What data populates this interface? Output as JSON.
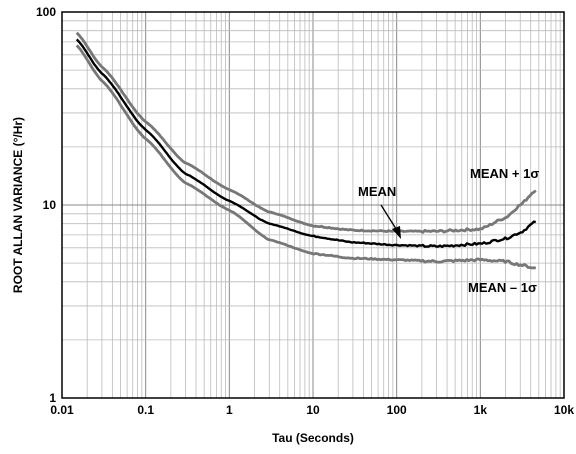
{
  "chart_data": {
    "type": "line",
    "xlabel": "Tau (Seconds)",
    "ylabel": "ROOT ALLAN VARIANCE (°/Hr)",
    "x_scale": "log",
    "y_scale": "log",
    "xlim": [
      0.01,
      10000
    ],
    "ylim": [
      1,
      100
    ],
    "x_ticks": [
      {
        "value": 0.01,
        "label": "0.01"
      },
      {
        "value": 0.1,
        "label": "0.1"
      },
      {
        "value": 1,
        "label": "1"
      },
      {
        "value": 10,
        "label": "10"
      },
      {
        "value": 100,
        "label": "100"
      },
      {
        "value": 1000,
        "label": "1k"
      },
      {
        "value": 10000,
        "label": "10k"
      }
    ],
    "y_ticks": [
      {
        "value": 1,
        "label": "1"
      },
      {
        "value": 10,
        "label": "10"
      },
      {
        "value": 100,
        "label": "100"
      }
    ],
    "grid": true,
    "series": [
      {
        "name": "MEAN + 1σ",
        "color": "#777777",
        "x": [
          0.015,
          0.03,
          0.1,
          0.3,
          1,
          3,
          10,
          30,
          100,
          300,
          1000,
          2000,
          3000,
          4600
        ],
        "y": [
          78,
          52,
          27,
          16.5,
          12,
          9.2,
          7.8,
          7.4,
          7.3,
          7.3,
          7.5,
          8.6,
          10,
          12
        ]
      },
      {
        "name": "MEAN",
        "color": "#000000",
        "x": [
          0.015,
          0.03,
          0.1,
          0.3,
          1,
          3,
          10,
          30,
          100,
          300,
          1000,
          2000,
          3000,
          4600
        ],
        "y": [
          72,
          48,
          24.5,
          14.5,
          10.5,
          8,
          6.9,
          6.4,
          6.2,
          6.1,
          6.3,
          6.7,
          7.2,
          8.2
        ]
      },
      {
        "name": "MEAN – 1σ",
        "color": "#777777",
        "x": [
          0.015,
          0.03,
          0.1,
          0.3,
          1,
          3,
          10,
          30,
          100,
          300,
          1000,
          2000,
          3000,
          4600
        ],
        "y": [
          67,
          44,
          22,
          13,
          9.4,
          6.6,
          5.6,
          5.3,
          5.2,
          5.1,
          5.2,
          5.1,
          4.9,
          4.7
        ]
      }
    ],
    "annotations": [
      {
        "text": "MEAN + 1σ",
        "series": 0
      },
      {
        "text": "MEAN",
        "series": 1
      },
      {
        "text": "MEAN – 1σ",
        "series": 2
      }
    ]
  }
}
